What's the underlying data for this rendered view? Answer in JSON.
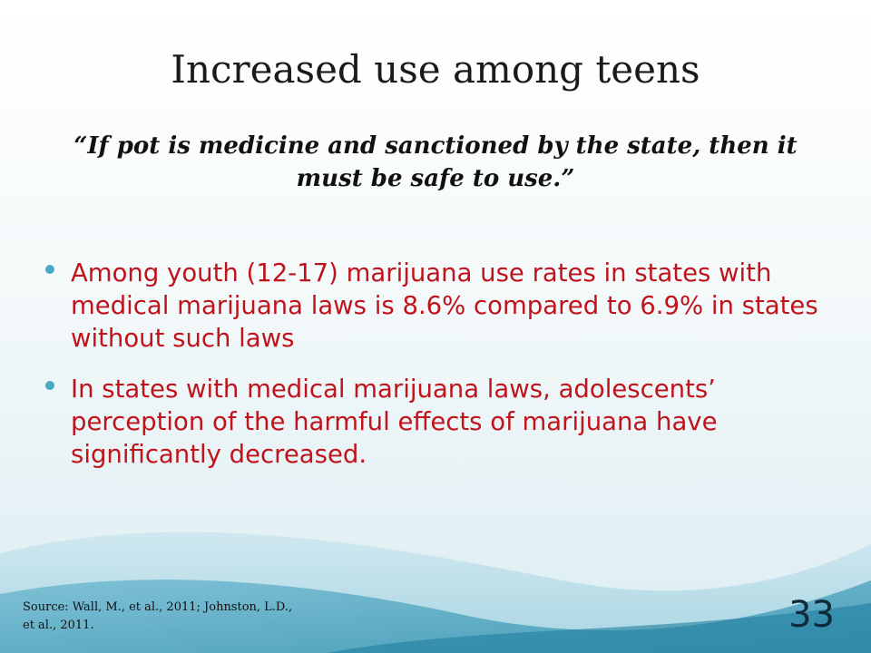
{
  "slide": {
    "title": "Increased use among teens",
    "quote": "“If pot is medicine and sanctioned by the state, then it must be safe to use.”",
    "bullets": [
      "Among youth (12-17) marijuana use rates in states with medical marijuana laws is 8.6% compared to 6.9% in states without such laws",
      "In states with medical marijuana laws, adolescents’ perception of the harmful effects of marijuana have significantly decreased."
    ],
    "source": "Source: Wall, M., et al., 2011; Johnston, L.D., et al., 2011.",
    "page_number": "33"
  },
  "colors": {
    "bullet_text": "#c0141c",
    "bullet_marker": "#4aa9c4",
    "wave_dark": "#4aa4c0",
    "wave_light": "#a8d6e4"
  }
}
